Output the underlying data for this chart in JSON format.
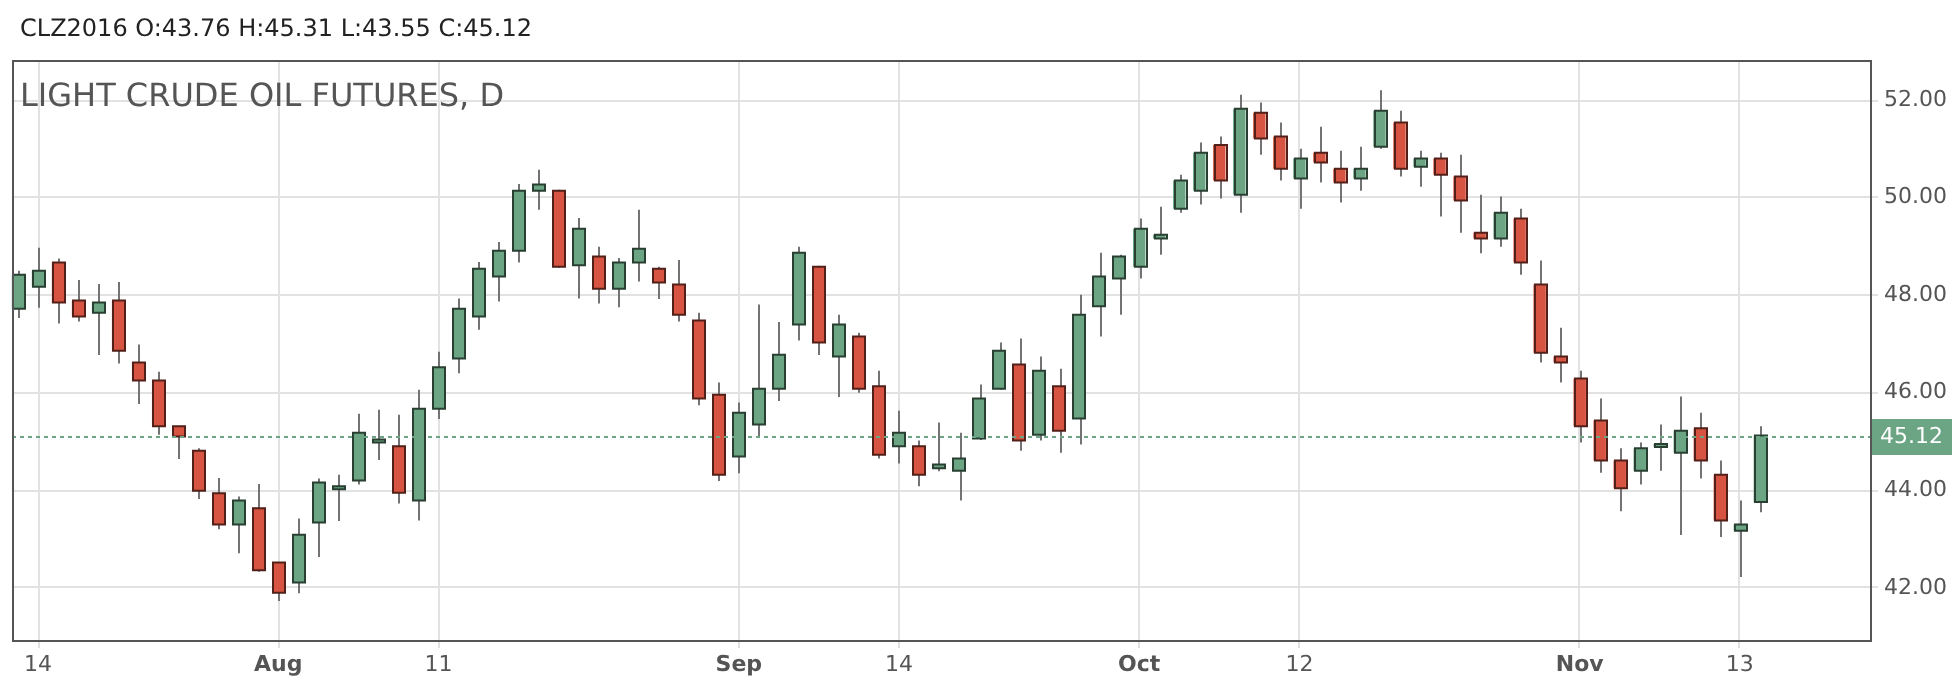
{
  "chart_data": {
    "type": "candlestick",
    "title": "LIGHT CRUDE OIL FUTURES, D",
    "subtitle": "CLZ2016 O:43.76 H:45.31 L:43.55 C:45.12",
    "categories": [
      null,
      "14",
      null,
      null,
      null,
      null,
      null,
      null,
      null,
      null,
      null,
      null,
      null,
      "Aug",
      null,
      null,
      null,
      null,
      null,
      null,
      null,
      "11",
      null,
      null,
      null,
      null,
      null,
      null,
      null,
      null,
      null,
      null,
      null,
      null,
      null,
      null,
      "Sep",
      null,
      null,
      null,
      null,
      null,
      null,
      null,
      "14",
      null,
      null,
      null,
      null,
      null,
      null,
      null,
      null,
      null,
      null,
      null,
      "Oct",
      null,
      null,
      null,
      null,
      null,
      null,
      null,
      "12",
      null,
      null,
      null,
      null,
      null,
      null,
      null,
      null,
      null,
      null,
      null,
      null,
      null,
      "Nov",
      null,
      null,
      null,
      null,
      null,
      null,
      null,
      "13",
      null
    ],
    "ohlc": [
      [
        47.72,
        48.5,
        47.53,
        48.42
      ],
      [
        48.17,
        48.97,
        47.74,
        48.5
      ],
      [
        48.67,
        48.75,
        47.42,
        47.85
      ],
      [
        47.89,
        48.31,
        47.46,
        47.56
      ],
      [
        47.64,
        48.23,
        46.77,
        47.85
      ],
      [
        47.89,
        48.27,
        46.6,
        46.86
      ],
      [
        46.62,
        46.99,
        45.77,
        46.25
      ],
      [
        46.25,
        46.43,
        45.14,
        45.31
      ],
      [
        45.31,
        45.32,
        44.64,
        45.1
      ],
      [
        44.81,
        44.86,
        43.82,
        43.99
      ],
      [
        43.94,
        44.25,
        43.2,
        43.3
      ],
      [
        43.3,
        43.87,
        42.71,
        43.79
      ],
      [
        43.63,
        44.13,
        42.33,
        42.36
      ],
      [
        42.52,
        42.52,
        41.73,
        41.9
      ],
      [
        42.11,
        43.42,
        41.89,
        43.09
      ],
      [
        43.34,
        44.24,
        42.63,
        44.16
      ],
      [
        44.02,
        44.32,
        43.37,
        44.08
      ],
      [
        44.2,
        45.57,
        44.12,
        45.18
      ],
      [
        45.01,
        45.65,
        44.62,
        45.04
      ],
      [
        44.9,
        45.55,
        43.73,
        43.95
      ],
      [
        43.79,
        46.06,
        43.38,
        45.67
      ],
      [
        45.67,
        46.84,
        45.46,
        46.52
      ],
      [
        46.7,
        47.93,
        46.4,
        47.72
      ],
      [
        47.56,
        48.68,
        47.29,
        48.54
      ],
      [
        48.38,
        49.09,
        47.87,
        48.91
      ],
      [
        48.91,
        50.28,
        48.67,
        50.14
      ],
      [
        50.14,
        50.57,
        49.75,
        50.27
      ],
      [
        50.14,
        50.16,
        48.56,
        48.58
      ],
      [
        48.61,
        49.58,
        47.93,
        49.36
      ],
      [
        48.79,
        48.99,
        47.83,
        48.13
      ],
      [
        48.13,
        48.76,
        47.75,
        48.67
      ],
      [
        48.67,
        49.75,
        48.28,
        48.95
      ],
      [
        48.54,
        48.58,
        47.92,
        48.26
      ],
      [
        48.22,
        48.72,
        47.46,
        47.6
      ],
      [
        47.48,
        47.64,
        45.74,
        45.88
      ],
      [
        45.96,
        46.21,
        44.19,
        44.32
      ],
      [
        44.69,
        45.8,
        44.35,
        45.59
      ],
      [
        45.35,
        47.81,
        45.1,
        46.08
      ],
      [
        46.08,
        47.45,
        45.83,
        46.78
      ],
      [
        47.4,
        48.99,
        47.07,
        48.87
      ],
      [
        48.58,
        48.6,
        46.77,
        47.03
      ],
      [
        46.74,
        47.6,
        45.91,
        47.4
      ],
      [
        47.15,
        47.23,
        46.0,
        46.08
      ],
      [
        46.13,
        46.45,
        44.65,
        44.73
      ],
      [
        44.9,
        45.63,
        44.55,
        45.18
      ],
      [
        44.9,
        45.02,
        44.08,
        44.32
      ],
      [
        44.45,
        45.39,
        44.39,
        44.53
      ],
      [
        44.4,
        45.18,
        43.79,
        44.65
      ],
      [
        45.06,
        46.17,
        45.03,
        45.88
      ],
      [
        46.08,
        47.03,
        46.06,
        46.86
      ],
      [
        46.58,
        47.11,
        44.81,
        45.02
      ],
      [
        45.14,
        46.74,
        45.02,
        46.45
      ],
      [
        46.13,
        46.49,
        44.77,
        45.22
      ],
      [
        45.47,
        48.01,
        44.94,
        47.6
      ],
      [
        47.77,
        48.87,
        47.15,
        48.38
      ],
      [
        48.34,
        48.83,
        47.6,
        48.79
      ],
      [
        48.58,
        49.57,
        48.34,
        49.36
      ],
      [
        49.16,
        49.81,
        48.83,
        49.24
      ],
      [
        49.77,
        50.47,
        49.69,
        50.35
      ],
      [
        50.14,
        51.13,
        49.86,
        50.92
      ],
      [
        51.08,
        51.25,
        49.98,
        50.35
      ],
      [
        50.06,
        52.11,
        49.69,
        51.82
      ],
      [
        51.74,
        51.95,
        50.88,
        51.21
      ],
      [
        51.25,
        51.54,
        50.35,
        50.59
      ],
      [
        50.39,
        51.0,
        49.77,
        50.8
      ],
      [
        50.92,
        51.45,
        50.31,
        50.72
      ],
      [
        50.59,
        50.96,
        49.9,
        50.31
      ],
      [
        50.39,
        51.04,
        50.14,
        50.59
      ],
      [
        51.04,
        52.2,
        51.0,
        51.78
      ],
      [
        51.54,
        51.78,
        50.43,
        50.59
      ],
      [
        50.63,
        50.96,
        50.22,
        50.8
      ],
      [
        50.8,
        50.92,
        49.61,
        50.47
      ],
      [
        50.43,
        50.88,
        49.28,
        49.94
      ],
      [
        49.28,
        50.06,
        48.86,
        49.16
      ],
      [
        49.16,
        50.02,
        48.99,
        49.69
      ],
      [
        49.57,
        49.77,
        48.42,
        48.67
      ],
      [
        48.22,
        48.71,
        46.62,
        46.82
      ],
      [
        46.74,
        47.33,
        46.21,
        46.62
      ],
      [
        46.29,
        46.45,
        44.98,
        45.31
      ],
      [
        45.43,
        45.88,
        44.36,
        44.61
      ],
      [
        44.61,
        44.86,
        43.57,
        44.04
      ],
      [
        44.4,
        44.98,
        44.12,
        44.86
      ],
      [
        44.92,
        45.35,
        44.4,
        44.95
      ],
      [
        44.77,
        45.92,
        43.08,
        45.22
      ],
      [
        45.27,
        45.59,
        44.24,
        44.61
      ],
      [
        44.32,
        44.61,
        43.04,
        43.38
      ],
      [
        43.17,
        43.79,
        42.22,
        43.3
      ],
      [
        43.76,
        45.31,
        43.55,
        45.12
      ]
    ],
    "colors": [
      "#6ba583",
      "#6ba583",
      "#d75442",
      "#d75442",
      "#6ba583",
      "#d75442",
      "#d75442",
      "#d75442",
      "#d75442",
      "#d75442",
      "#d75442",
      "#6ba583",
      "#d75442",
      "#d75442",
      "#6ba583",
      "#6ba583",
      "#6ba583",
      "#6ba583",
      "#6ba583",
      "#d75442",
      "#6ba583",
      "#6ba583",
      "#6ba583",
      "#6ba583",
      "#6ba583",
      "#6ba583",
      "#6ba583",
      "#d75442",
      "#6ba583",
      "#d75442",
      "#6ba583",
      "#6ba583",
      "#d75442",
      "#d75442",
      "#d75442",
      "#d75442",
      "#6ba583",
      "#6ba583",
      "#6ba583",
      "#6ba583",
      "#d75442",
      "#6ba583",
      "#d75442",
      "#d75442",
      "#6ba583",
      "#d75442",
      "#6ba583",
      "#6ba583",
      "#6ba583",
      "#6ba583",
      "#d75442",
      "#6ba583",
      "#d75442",
      "#6ba583",
      "#6ba583",
      "#6ba583",
      "#6ba583",
      "#6ba583",
      "#6ba583",
      "#6ba583",
      "#d75442",
      "#6ba583",
      "#d75442",
      "#d75442",
      "#6ba583",
      "#d75442",
      "#d75442",
      "#6ba583",
      "#6ba583",
      "#d75442",
      "#6ba583",
      "#d75442",
      "#d75442",
      "#d75442",
      "#6ba583",
      "#d75442",
      "#d75442",
      "#d75442",
      "#d75442",
      "#d75442",
      "#d75442",
      "#6ba583",
      "#6ba583",
      "#6ba583",
      "#d75442",
      "#d75442",
      "#6ba583",
      "#6ba583"
    ],
    "ylim": [
      40.93,
      52.82
    ],
    "yticks": [
      {
        "value": 42,
        "label": "42.00"
      },
      {
        "value": 44,
        "label": "44.00"
      },
      {
        "value": 46,
        "label": "46.00"
      },
      {
        "value": 48,
        "label": "48.00"
      },
      {
        "value": 50,
        "label": "50.00"
      },
      {
        "value": 52,
        "label": "52.00"
      }
    ],
    "ref_lines": [
      {
        "axis": "y",
        "value": 45.12,
        "label": "45.12",
        "color": "#6ba583",
        "line_style": "dotted"
      }
    ],
    "grid": true
  }
}
